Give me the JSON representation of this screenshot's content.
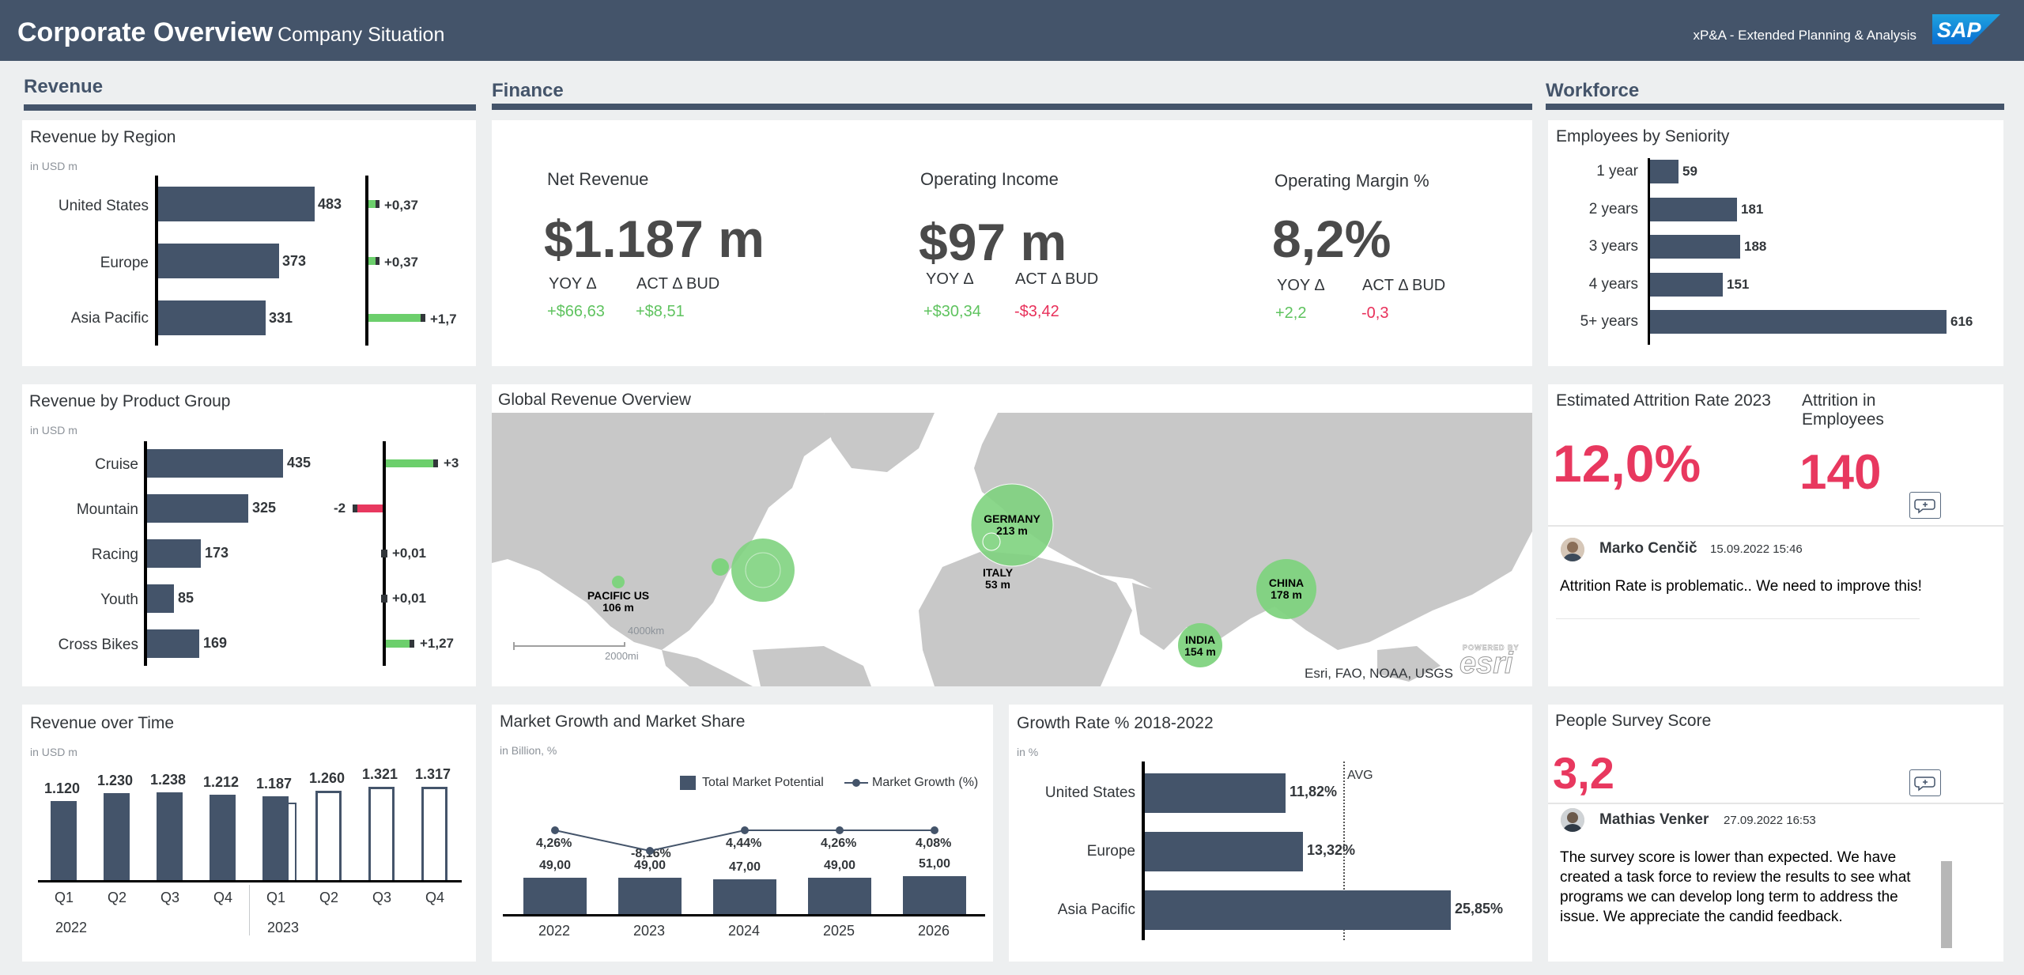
{
  "header": {
    "title": "Corporate Overview",
    "subtitle": "Company Situation",
    "app_name": "xP&A - Extended Planning & Analysis",
    "logo_text": "SAP"
  },
  "sections": {
    "revenue": "Revenue",
    "finance": "Finance",
    "workforce": "Workforce"
  },
  "revenue_by_region": {
    "title": "Revenue by Region",
    "unit": "in USD m",
    "rows": [
      {
        "label": "United States",
        "value": "483",
        "delta": "+0,37"
      },
      {
        "label": "Europe",
        "value": "373",
        "delta": "+0,37"
      },
      {
        "label": "Asia Pacific",
        "value": "331",
        "delta": "+1,7"
      }
    ]
  },
  "revenue_by_product": {
    "title": "Revenue by Product Group",
    "unit": "in USD m",
    "rows": [
      {
        "label": "Cruise",
        "value": "435",
        "delta": "+3"
      },
      {
        "label": "Mountain",
        "value": "325",
        "delta": "-2"
      },
      {
        "label": "Racing",
        "value": "173",
        "delta": "+0,01"
      },
      {
        "label": "Youth",
        "value": "85",
        "delta": "+0,01"
      },
      {
        "label": "Cross Bikes",
        "value": "169",
        "delta": "+1,27"
      }
    ]
  },
  "revenue_over_time": {
    "title": "Revenue over Time",
    "unit": "in USD m",
    "quarters": [
      "Q1",
      "Q2",
      "Q3",
      "Q4",
      "Q1",
      "Q2",
      "Q3",
      "Q4"
    ],
    "values": [
      "1.120",
      "1.230",
      "1.238",
      "1.212",
      "1.187",
      "1.260",
      "1.321",
      "1.317"
    ],
    "years": [
      "2022",
      "2023"
    ]
  },
  "finance_kpis": {
    "net_revenue": {
      "label": "Net Revenue",
      "value": "$1.187 m",
      "yoy_label": "YOY Δ",
      "act_label": "ACT Δ BUD",
      "yoy": "+$66,63",
      "act": "+$8,51"
    },
    "operating_income": {
      "label": "Operating Income",
      "value": "$97 m",
      "yoy_label": "YOY Δ",
      "act_label": "ACT Δ BUD",
      "yoy": "+$30,34",
      "act": "-$3,42"
    },
    "operating_margin": {
      "label": "Operating Margin %",
      "value": "8,2%",
      "yoy_label": "YOY Δ",
      "act_label": "ACT Δ BUD",
      "yoy": "+2,2",
      "act": "-0,3"
    }
  },
  "global_revenue": {
    "title": "Global Revenue Overview",
    "bubbles": [
      {
        "name": "GERMANY",
        "value": "213 m"
      },
      {
        "name": "ITALY",
        "value": "53 m"
      },
      {
        "name": "PACIFIC US",
        "value": "106 m"
      },
      {
        "name": "CHINA",
        "value": "178 m"
      },
      {
        "name": "INDIA",
        "value": "154 m"
      }
    ],
    "attribution": "Esri, FAO, NOAA, USGS",
    "scale_km": "4000km",
    "scale_mi": "2000mi",
    "logo": "esri",
    "logo_caption": "POWERED BY"
  },
  "market_growth": {
    "title": "Market Growth and Market Share",
    "unit": "in Billion, %",
    "legend_bar": "Total Market Potential",
    "legend_line": "Market Growth (%)",
    "years": [
      "2022",
      "2023",
      "2024",
      "2025",
      "2026"
    ],
    "bar_values": [
      "49,00",
      "49,00",
      "47,00",
      "49,00",
      "51,00"
    ],
    "growth_values": [
      "4,26%",
      "-8,16%",
      "4,44%",
      "4,26%",
      "4,08%"
    ]
  },
  "growth_rate": {
    "title": "Growth Rate % 2018-2022",
    "unit": "in %",
    "avg_label": "AVG",
    "rows": [
      {
        "label": "United States",
        "value": "11,82%"
      },
      {
        "label": "Europe",
        "value": "13,32%"
      },
      {
        "label": "Asia Pacific",
        "value": "25,85%"
      }
    ]
  },
  "employees_by_seniority": {
    "title": "Employees by Seniority",
    "rows": [
      {
        "label": "1 year",
        "value": "59"
      },
      {
        "label": "2 years",
        "value": "181"
      },
      {
        "label": "3 years",
        "value": "188"
      },
      {
        "label": "4 years",
        "value": "151"
      },
      {
        "label": "5+ years",
        "value": "616"
      }
    ]
  },
  "attrition": {
    "rate_title": "Estimated Attrition Rate 2023",
    "rate_value": "12,0%",
    "emp_title_1": "Attrition in",
    "emp_title_2": "Employees",
    "emp_value": "140",
    "comment": {
      "author": "Marko Cenčič",
      "date": "15.09.2022 15:46",
      "text": "Attrition Rate is problematic.. We need to improve this!"
    }
  },
  "survey": {
    "title": "People Survey Score",
    "value": "3,2",
    "comment": {
      "author": "Mathias Venker",
      "date": "27.09.2022 16:53",
      "text": "The survey score is lower than expected.  We have created a task force to review the results to see what programs we can develop long term to address the issue.  We appreciate the candid feedback."
    }
  },
  "chart_data": [
    {
      "type": "bar",
      "title": "Revenue by Region",
      "categories": [
        "United States",
        "Europe",
        "Asia Pacific"
      ],
      "values": [
        483,
        373,
        331
      ],
      "deltas": [
        0.37,
        0.37,
        1.7
      ]
    },
    {
      "type": "bar",
      "title": "Revenue by Product Group",
      "categories": [
        "Cruise",
        "Mountain",
        "Racing",
        "Youth",
        "Cross Bikes"
      ],
      "values": [
        435,
        325,
        173,
        85,
        169
      ],
      "deltas": [
        3,
        -2,
        0.01,
        0.01,
        1.27
      ]
    },
    {
      "type": "bar",
      "title": "Revenue over Time",
      "categories": [
        "Q1 2022",
        "Q2 2022",
        "Q3 2022",
        "Q4 2022",
        "Q1 2023",
        "Q2 2023",
        "Q3 2023",
        "Q4 2023"
      ],
      "values": [
        1120,
        1230,
        1238,
        1212,
        1187,
        1260,
        1321,
        1317
      ]
    },
    {
      "type": "bar",
      "title": "Market Growth and Market Share",
      "categories": [
        "2022",
        "2023",
        "2024",
        "2025",
        "2026"
      ],
      "series": [
        {
          "name": "Total Market Potential",
          "values": [
            49,
            49,
            47,
            49,
            51
          ]
        },
        {
          "name": "Market Growth (%)",
          "values": [
            4.26,
            -8.16,
            4.44,
            4.26,
            4.08
          ]
        }
      ]
    },
    {
      "type": "bar",
      "title": "Growth Rate % 2018-2022",
      "categories": [
        "United States",
        "Europe",
        "Asia Pacific"
      ],
      "values": [
        11.82,
        13.32,
        25.85
      ]
    },
    {
      "type": "bar",
      "title": "Employees by Seniority",
      "categories": [
        "1 year",
        "2 years",
        "3 years",
        "4 years",
        "5+ years"
      ],
      "values": [
        59,
        181,
        188,
        151,
        616
      ]
    }
  ]
}
